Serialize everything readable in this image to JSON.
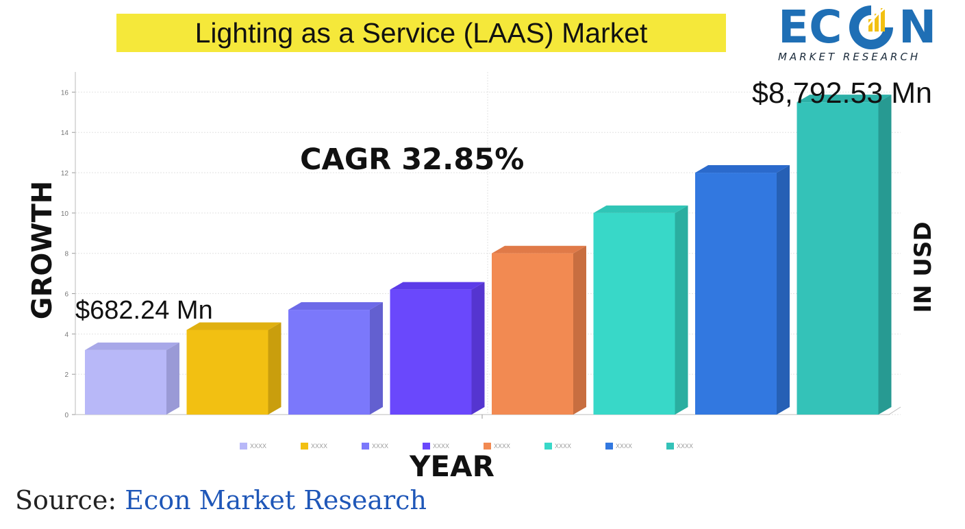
{
  "title": "Lighting as a Service (LAAS) Market",
  "logo": {
    "word": "ECON",
    "subtitle": "MARKET RESEARCH",
    "color": "#1f6fb5"
  },
  "annotations": {
    "cagr": "CAGR 32.85%",
    "start_value": "$682.24 Mn",
    "end_value": "$8,792.53 Mn"
  },
  "right_label": "IN USD",
  "source": {
    "label": "Source:",
    "value": "Econ Market Research"
  },
  "colors": {
    "title_highlight": "#f5e83a",
    "source_value": "#1f57b8"
  },
  "chart_data": {
    "type": "bar",
    "title": "Lighting as a Service (LAAS) Market",
    "xlabel": "YEAR",
    "ylabel": "GROWTH",
    "ylim": [
      0,
      17
    ],
    "yticks": [
      0,
      2,
      4,
      6,
      8,
      10,
      12,
      14,
      16
    ],
    "grid": true,
    "legend_position": "bottom",
    "categories": [
      "XXXX",
      "XXXX",
      "XXXX",
      "XXXX",
      "XXXX",
      "XXXX",
      "XXXX",
      "XXXX"
    ],
    "values": [
      3.2,
      4.2,
      5.2,
      6.2,
      8.0,
      10.0,
      12.0,
      15.5
    ],
    "colors": [
      "#b8b8f8",
      "#f2c012",
      "#7b78fb",
      "#6a48fc",
      "#f28a52",
      "#38d8c8",
      "#3278e0",
      "#34c2b8"
    ],
    "side_colors": [
      "#9a9ad6",
      "#c99e0d",
      "#6360d0",
      "#5535d0",
      "#c86e40",
      "#2aaea0",
      "#2660b5",
      "#279a92"
    ],
    "top_colors": [
      "#a8a8e8",
      "#e0b010",
      "#6d6ae8",
      "#5c3ce8",
      "#e07a48",
      "#30c5b6",
      "#2b6acc",
      "#2db0a7"
    ],
    "legend": [
      "XXXX",
      "XXXX",
      "XXXX",
      "XXXX",
      "XXXX",
      "XXXX",
      "XXXX",
      "XXXX"
    ]
  }
}
